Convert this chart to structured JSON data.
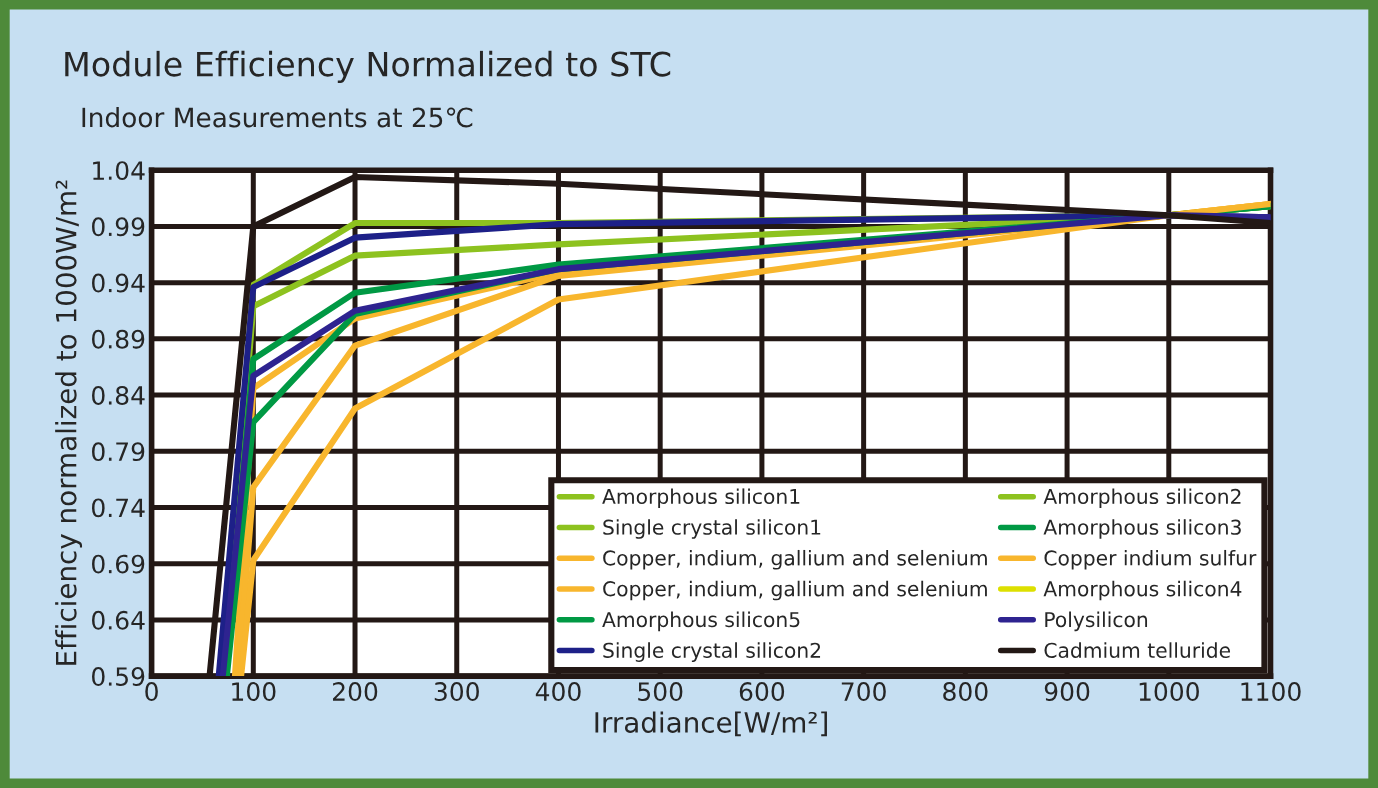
{
  "chart_data": {
    "type": "line",
    "title": "Module Efficiency Normalized to STC",
    "subtitle": "Indoor Measurements at 25℃",
    "xlabel": "Irradiance[W/m²]",
    "ylabel": "Efficiency normalized to 1000W/m²",
    "xlim": [
      0,
      1100
    ],
    "xticks": [
      0,
      100,
      200,
      300,
      400,
      500,
      600,
      700,
      800,
      900,
      1000,
      1100
    ],
    "ylim": [
      0.59,
      1.04
    ],
    "yticks": [
      0.59,
      0.64,
      0.69,
      0.74,
      0.79,
      0.84,
      0.89,
      0.94,
      0.99,
      1.04
    ],
    "grid": true,
    "legend": "bottom right",
    "marker": "none",
    "line_style": "solid",
    "series": [
      {
        "name": "Amorphous silicon1",
        "color": "#8dc21f",
        "x": [
          70,
          100,
          200,
          400,
          1000,
          1100
        ],
        "values": [
          0.59,
          0.938,
          0.993,
          0.993,
          1.0,
          1.008
        ]
      },
      {
        "name": "Single crystal silicon1",
        "color": "#8dc21f",
        "x": [
          70,
          100,
          200,
          400,
          1000,
          1100
        ],
        "values": [
          0.59,
          0.919,
          0.964,
          0.974,
          1.0,
          1.008
        ]
      },
      {
        "name": "Copper, indium, gallium and selenium",
        "color": "#f8b62d",
        "x": [
          82,
          100,
          200,
          400,
          1000,
          1100
        ],
        "values": [
          0.59,
          0.846,
          0.908,
          0.949,
          1.0,
          1.01
        ]
      },
      {
        "name": "Copper, indium, gallium and selenium",
        "color": "#f8b62d",
        "x": [
          85,
          100,
          200,
          400,
          1000,
          1100
        ],
        "values": [
          0.59,
          0.758,
          0.884,
          0.946,
          1.0,
          1.01
        ]
      },
      {
        "name": "Amorphous silicon5",
        "color": "#009944",
        "x": [
          74,
          100,
          200,
          400,
          1000,
          1100
        ],
        "values": [
          0.59,
          0.816,
          0.912,
          0.952,
          1.0,
          1.008
        ]
      },
      {
        "name": "Single crystal silicon2",
        "color": "#1d2088",
        "x": [
          66,
          100,
          200,
          400,
          1000,
          1100
        ],
        "values": [
          0.59,
          0.936,
          0.98,
          0.992,
          1.0,
          0.998
        ]
      },
      {
        "name": "Amorphous silicon2",
        "color": "#8dc21f",
        "values": [
          null,
          null,
          null,
          null,
          null,
          null
        ]
      },
      {
        "name": "Amorphous silicon3",
        "color": "#009944",
        "x": [
          72,
          100,
          200,
          400,
          1000,
          1100
        ],
        "values": [
          0.59,
          0.872,
          0.931,
          0.956,
          1.0,
          1.008
        ]
      },
      {
        "name": "Copper indium sulfur",
        "color": "#f8b62d",
        "x": [
          88,
          100,
          200,
          400,
          1000,
          1100
        ],
        "values": [
          0.59,
          0.693,
          0.828,
          0.925,
          1.0,
          1.01
        ]
      },
      {
        "name": "Amorphous silicon4",
        "color": "#dde000",
        "values": [
          null,
          null,
          null,
          null,
          null,
          null
        ]
      },
      {
        "name": "Polysilicon",
        "color": "#2e2390",
        "x": [
          70,
          100,
          200,
          400,
          1000,
          1100
        ],
        "values": [
          0.59,
          0.857,
          0.915,
          0.952,
          1.0,
          0.998
        ]
      },
      {
        "name": "Cadmium telluride",
        "color": "#231815",
        "x": [
          57,
          100,
          200,
          400,
          1000,
          1100
        ],
        "values": [
          0.59,
          0.99,
          1.034,
          1.028,
          1.0,
          0.993
        ]
      }
    ]
  }
}
